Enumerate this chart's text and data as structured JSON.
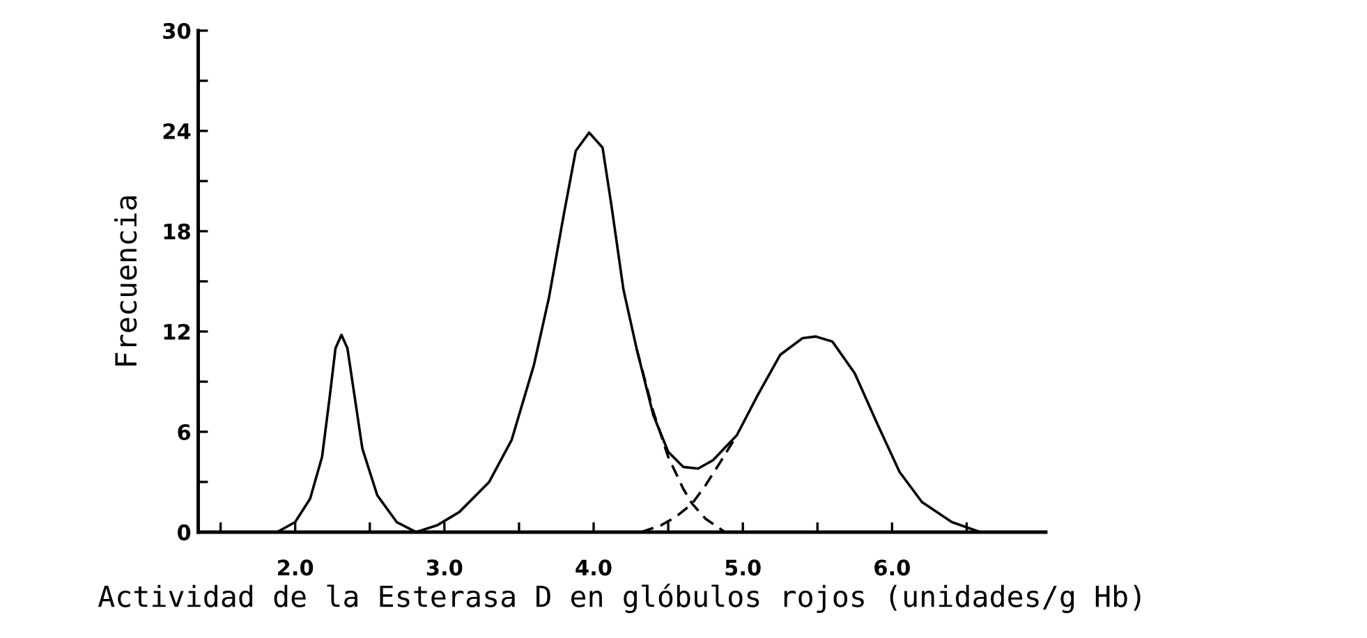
{
  "chart_data": {
    "type": "line",
    "xlabel": "Actividad de la Esterasa D en glóbulos rojos (unidades/g Hb)",
    "ylabel": "Frecuencia",
    "series": [
      {
        "color": "#000000",
        "line_style": "solid",
        "x": [
          1.88,
          2.0,
          2.1,
          2.18,
          2.23,
          2.27,
          2.31,
          2.35,
          2.4,
          2.45,
          2.55,
          2.68,
          2.81,
          2.95,
          3.1,
          3.3,
          3.45,
          3.6,
          3.7,
          3.8,
          3.88,
          3.97,
          4.06,
          4.12,
          4.2,
          4.29,
          4.4,
          4.5,
          4.6,
          4.7,
          4.8,
          4.96,
          5.1,
          5.25,
          5.4,
          5.49,
          5.6,
          5.75,
          5.9,
          6.05,
          6.2,
          6.4,
          6.59
        ],
        "values": [
          0,
          0.6,
          2,
          4.5,
          8,
          11,
          11.8,
          11,
          8,
          5,
          2.2,
          0.6,
          0,
          0.4,
          1.2,
          3,
          5.5,
          10,
          14,
          19,
          22.8,
          23.9,
          23,
          19.5,
          14.5,
          10.9,
          7,
          4.8,
          3.9,
          3.8,
          4.3,
          5.8,
          8.2,
          10.6,
          11.6,
          11.7,
          11.4,
          9.5,
          6.5,
          3.6,
          1.8,
          0.6,
          0
        ]
      },
      {
        "color": "#000000",
        "line_style": "dashed",
        "x": [
          4.29,
          4.4,
          4.5,
          4.6,
          4.66,
          4.75,
          4.88
        ],
        "values": [
          10.9,
          7.2,
          4.5,
          2.6,
          1.7,
          0.8,
          0
        ]
      },
      {
        "color": "#000000",
        "line_style": "dashed",
        "x": [
          4.32,
          4.45,
          4.55,
          4.66,
          4.75,
          4.85,
          4.96
        ],
        "values": [
          0,
          0.4,
          0.9,
          1.7,
          2.8,
          4.2,
          5.8
        ]
      }
    ],
    "xlim": [
      1.35,
      7.03
    ],
    "xticks": [
      {
        "value": 1.5,
        "label": null
      },
      {
        "value": 2,
        "label": "2.0"
      },
      {
        "value": 2.5,
        "label": null
      },
      {
        "value": 3,
        "label": "3.0"
      },
      {
        "value": 3.5,
        "label": null
      },
      {
        "value": 4,
        "label": "4.0"
      },
      {
        "value": 4.5,
        "label": null
      },
      {
        "value": 5,
        "label": "5.0"
      },
      {
        "value": 5.5,
        "label": null
      },
      {
        "value": 6,
        "label": "6.0"
      },
      {
        "value": 6.5,
        "label": null
      }
    ],
    "ylim": [
      0,
      30
    ],
    "yticks": [
      0,
      {
        "value": 3,
        "label": null
      },
      6,
      {
        "value": 9,
        "label": null
      },
      12,
      {
        "value": 15,
        "label": null
      },
      18,
      {
        "value": 21,
        "label": null
      },
      24,
      {
        "value": 27,
        "label": null
      },
      30
    ],
    "grid": false,
    "legend": false,
    "marker": "none"
  }
}
